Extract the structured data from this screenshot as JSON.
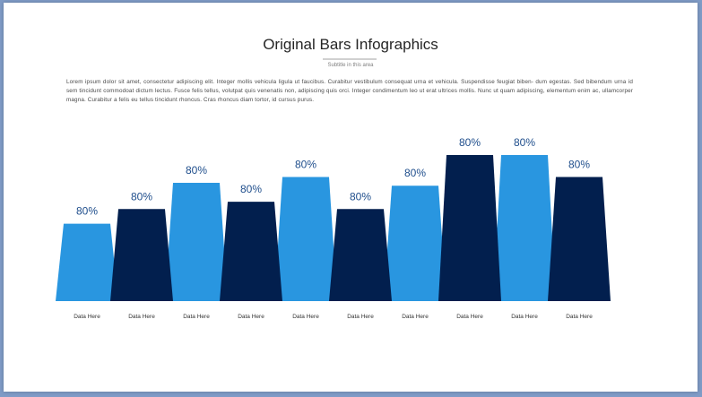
{
  "slide": {
    "title": "Original Bars Infographics",
    "subtitle": "Subtitle in this area",
    "body": "Lorem ipsum dolor sit amet, consectetur adipiscing elit. Integer mollis vehicula ligula ut faucibus. Curabitur vestibulum consequat urna et vehicula. Suspendisse feugiat biben- dum egestas. Sed bibendum urna id sem tincidunt commodoat dictum lectus. Fusce felis tellus, volutpat quis venenatis non, adipiscing quis orci. Integer condimentum leo ut erat ultrices mollis. Nunc ut quam adipiscing, elementum enim ac, ullamcorper magna. Curabitur a felis eu tellus tincidunt rhoncus. Cras rhoncus diam tortor, id cursus purus."
  },
  "colors": {
    "light_bar": "#2996e0",
    "dark_bar": "#021f4e",
    "value_label": "#1f4e8c"
  },
  "chart_data": {
    "type": "bar",
    "categories": [
      "Data Here",
      "Data Here",
      "Data Here",
      "Data Here",
      "Data Here",
      "Data Here",
      "Data Here",
      "Data Here",
      "Data Here",
      "Data Here"
    ],
    "value_labels": [
      "80%",
      "80%",
      "80%",
      "80%",
      "80%",
      "80%",
      "80%",
      "80%",
      "80%",
      "80%"
    ],
    "relative_heights": [
      0.53,
      0.63,
      0.81,
      0.68,
      0.85,
      0.63,
      0.79,
      1.0,
      1.0,
      0.85
    ],
    "bar_colors": [
      "light",
      "dark",
      "light",
      "dark",
      "light",
      "dark",
      "light",
      "dark",
      "light",
      "dark"
    ]
  }
}
